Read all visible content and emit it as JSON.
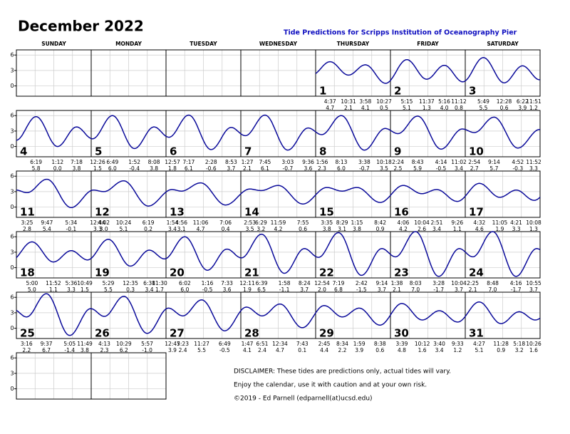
{
  "header": {
    "title": "December 2022",
    "subtitle": "Tide Predictions for Scripps Institution of Oceanography Pier"
  },
  "weekdays": [
    "SUNDAY",
    "MONDAY",
    "TUESDAY",
    "WEDNESDAY",
    "THURSDAY",
    "FRIDAY",
    "SATURDAY"
  ],
  "axis": {
    "ylim": [
      -2,
      7
    ],
    "yticks": [
      0,
      3,
      6
    ]
  },
  "days": [
    {
      "label": "1",
      "tides": [
        {
          "time": "4:37",
          "height": "4.7"
        },
        {
          "time": "10:31",
          "height": "2.1"
        },
        {
          "time": "3:58",
          "height": "4.1"
        },
        {
          "time": "10:27",
          "height": "0.5"
        }
      ]
    },
    {
      "label": "2",
      "tides": [
        {
          "time": "5:15",
          "height": "5.1"
        },
        {
          "time": "11:37",
          "height": "1.3"
        },
        {
          "time": "5:16",
          "height": "4.0"
        },
        {
          "time": "11:12",
          "height": "0.8"
        }
      ]
    },
    {
      "label": "3",
      "tides": [
        {
          "time": "5:49",
          "height": "5.5"
        },
        {
          "time": "12:28",
          "height": "0.6"
        },
        {
          "time": "6:22",
          "height": "3.9"
        },
        {
          "time": "11:51",
          "height": "1.2"
        }
      ]
    },
    {
      "label": "4",
      "tides": [
        {
          "time": "6:19",
          "height": "5.8"
        },
        {
          "time": "1:12",
          "height": "0.0"
        },
        {
          "time": "7:18",
          "height": "3.8"
        }
      ]
    },
    {
      "label": "5",
      "tides": [
        {
          "time": "12:26",
          "height": "1.5"
        },
        {
          "time": "6:49",
          "height": "6.0"
        },
        {
          "time": "1:52",
          "height": "-0.4"
        },
        {
          "time": "8:08",
          "height": "3.8"
        }
      ]
    },
    {
      "label": "6",
      "tides": [
        {
          "time": "12:57",
          "height": "1.8"
        },
        {
          "time": "7:17",
          "height": "6.1"
        },
        {
          "time": "2:28",
          "height": "-0.6"
        },
        {
          "time": "8:53",
          "height": "3.7"
        }
      ]
    },
    {
      "label": "7",
      "tides": [
        {
          "time": "1:27",
          "height": "2.1"
        },
        {
          "time": "7:45",
          "height": "6.1"
        },
        {
          "time": "3:03",
          "height": "-0.7"
        },
        {
          "time": "9:36",
          "height": "3.6"
        }
      ]
    },
    {
      "label": "8",
      "tides": [
        {
          "time": "1:56",
          "height": "2.3"
        },
        {
          "time": "8:13",
          "height": "6.0"
        },
        {
          "time": "3:38",
          "height": "-0.7"
        },
        {
          "time": "10:18",
          "height": "3.5"
        }
      ]
    },
    {
      "label": "9",
      "tides": [
        {
          "time": "2:24",
          "height": "2.5"
        },
        {
          "time": "8:43",
          "height": "5.9"
        },
        {
          "time": "4:14",
          "height": "-0.5"
        },
        {
          "time": "11:02",
          "height": "3.4"
        }
      ]
    },
    {
      "label": "10",
      "tides": [
        {
          "time": "2:54",
          "height": "2.7"
        },
        {
          "time": "9:14",
          "height": "5.7"
        },
        {
          "time": "4:52",
          "height": "-0.3"
        },
        {
          "time": "11:52",
          "height": "3.3"
        }
      ]
    },
    {
      "label": "11",
      "tides": [
        {
          "time": "3:25",
          "height": "2.8"
        },
        {
          "time": "9:47",
          "height": "5.4"
        },
        {
          "time": "5:34",
          "height": "-0.1"
        }
      ]
    },
    {
      "label": "12",
      "tides": [
        {
          "time": "12:44",
          "height": "3.3"
        },
        {
          "time": "4:02",
          "height": "3.0"
        },
        {
          "time": "10:24",
          "height": "5.1"
        },
        {
          "time": "6:19",
          "height": "0.2"
        }
      ]
    },
    {
      "label": "13",
      "tides": [
        {
          "time": "1:54",
          "height": "3.4"
        },
        {
          "time": "4:56",
          "height": "3.1"
        },
        {
          "time": "11:06",
          "height": "4.7"
        },
        {
          "time": "7:06",
          "height": "0.4"
        }
      ]
    },
    {
      "label": "14",
      "tides": [
        {
          "time": "2:53",
          "height": "3.5"
        },
        {
          "time": "6:29",
          "height": "3.2"
        },
        {
          "time": "11:59",
          "height": "4.2"
        },
        {
          "time": "7:55",
          "height": "0.6"
        }
      ]
    },
    {
      "label": "15",
      "tides": [
        {
          "time": "3:35",
          "height": "3.8"
        },
        {
          "time": "8:29",
          "height": "3.1"
        },
        {
          "time": "1:15",
          "height": "3.8"
        },
        {
          "time": "8:42",
          "height": "0.9"
        }
      ]
    },
    {
      "label": "16",
      "tides": [
        {
          "time": "4:06",
          "height": "4.2"
        },
        {
          "time": "10:04",
          "height": "2.6"
        },
        {
          "time": "2:51",
          "height": "3.4"
        },
        {
          "time": "9:26",
          "height": "1.1"
        }
      ]
    },
    {
      "label": "17",
      "tides": [
        {
          "time": "4:32",
          "height": "4.6"
        },
        {
          "time": "11:05",
          "height": "1.9"
        },
        {
          "time": "4:21",
          "height": "3.3"
        },
        {
          "time": "10:08",
          "height": "1.3"
        }
      ]
    },
    {
      "label": "18",
      "tides": [
        {
          "time": "5:00",
          "height": "5.0"
        },
        {
          "time": "11:52",
          "height": "1.1"
        },
        {
          "time": "5:36",
          "height": "3.3"
        },
        {
          "time": "10:49",
          "height": "1.5"
        }
      ]
    },
    {
      "label": "19",
      "tides": [
        {
          "time": "5:29",
          "height": "5.5"
        },
        {
          "time": "12:35",
          "height": "0.3"
        },
        {
          "time": "6:38",
          "height": "3.4"
        },
        {
          "time": "11:30",
          "height": "1.7"
        }
      ]
    },
    {
      "label": "20",
      "tides": [
        {
          "time": "6:02",
          "height": "6.0"
        },
        {
          "time": "1:16",
          "height": "-0.5"
        },
        {
          "time": "7:33",
          "height": "3.6"
        }
      ]
    },
    {
      "label": "21",
      "tides": [
        {
          "time": "12:11",
          "height": "1.9"
        },
        {
          "time": "6:39",
          "height": "6.5"
        },
        {
          "time": "1:58",
          "height": "-1.1"
        },
        {
          "time": "8:24",
          "height": "3.7"
        }
      ]
    },
    {
      "label": "22",
      "tides": [
        {
          "time": "12:54",
          "height": "2.0"
        },
        {
          "time": "7:19",
          "height": "6.8"
        },
        {
          "time": "2:42",
          "height": "-1.5"
        },
        {
          "time": "9:14",
          "height": "3.7"
        }
      ]
    },
    {
      "label": "23",
      "tides": [
        {
          "time": "1:38",
          "height": "2.1"
        },
        {
          "time": "8:03",
          "height": "7.0"
        },
        {
          "time": "3:28",
          "height": "-1.7"
        },
        {
          "time": "10:04",
          "height": "3.7"
        }
      ]
    },
    {
      "label": "24",
      "tides": [
        {
          "time": "2:25",
          "height": "2.1"
        },
        {
          "time": "8:48",
          "height": "7.0"
        },
        {
          "time": "4:16",
          "height": "-1.7"
        },
        {
          "time": "10:55",
          "height": "3.7"
        }
      ]
    },
    {
      "label": "25",
      "tides": [
        {
          "time": "3:16",
          "height": "2.2"
        },
        {
          "time": "9:37",
          "height": "6.7"
        },
        {
          "time": "5:05",
          "height": "-1.4"
        },
        {
          "time": "11:49",
          "height": "3.8"
        }
      ]
    },
    {
      "label": "26",
      "tides": [
        {
          "time": "4:13",
          "height": "2.3"
        },
        {
          "time": "10:29",
          "height": "6.2"
        },
        {
          "time": "5:57",
          "height": "-1.0"
        }
      ]
    },
    {
      "label": "27",
      "tides": [
        {
          "time": "12:47",
          "height": "3.9"
        },
        {
          "time": "5:23",
          "height": "2.4"
        },
        {
          "time": "11:27",
          "height": "5.5"
        },
        {
          "time": "6:49",
          "height": "-0.5"
        }
      ]
    },
    {
      "label": "28",
      "tides": [
        {
          "time": "1:47",
          "height": "4.1"
        },
        {
          "time": "6:51",
          "height": "2.4"
        },
        {
          "time": "12:34",
          "height": "4.7"
        },
        {
          "time": "7:43",
          "height": "0.1"
        }
      ]
    },
    {
      "label": "29",
      "tides": [
        {
          "time": "2:45",
          "height": "4.4"
        },
        {
          "time": "8:34",
          "height": "2.2"
        },
        {
          "time": "1:59",
          "height": "3.9"
        },
        {
          "time": "8:38",
          "height": "0.6"
        }
      ]
    },
    {
      "label": "30",
      "tides": [
        {
          "time": "3:39",
          "height": "4.8"
        },
        {
          "time": "10:12",
          "height": "1.6"
        },
        {
          "time": "3:40",
          "height": "3.4"
        },
        {
          "time": "9:33",
          "height": "1.2"
        }
      ]
    },
    {
      "label": "31",
      "tides": [
        {
          "time": "4:27",
          "height": "5.1"
        },
        {
          "time": "11:28",
          "height": "0.9"
        },
        {
          "time": "5:18",
          "height": "3.2"
        },
        {
          "time": "10:26",
          "height": "1.6"
        }
      ]
    }
  ],
  "disclaimer": [
    "DISCLAIMER: These tides are predictions only, actual tides will vary.",
    "Enjoy the calendar, use it with caution and at your own risk.",
    "©2019 - Ed Parnell (edparnell(at)ucsd.edu)"
  ]
}
